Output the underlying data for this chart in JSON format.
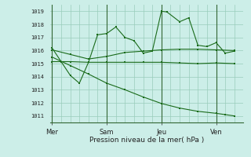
{
  "background_color": "#cceee8",
  "grid_color": "#99ccbb",
  "line_color": "#1a6b1a",
  "ylim": [
    1010.5,
    1019.5
  ],
  "yticks": [
    1011,
    1012,
    1013,
    1014,
    1015,
    1016,
    1017,
    1018,
    1019
  ],
  "xlabel": "Pression niveau de la mer( hPa )",
  "day_labels": [
    "Mer",
    "Sam",
    "Jeu",
    "Ven"
  ],
  "day_positions": [
    0,
    3,
    6,
    9
  ],
  "xlim": [
    -0.1,
    10.5
  ],
  "series1_x": [
    0,
    0.5,
    1,
    1.5,
    2,
    2.5,
    3,
    3.5,
    4,
    4.5,
    5,
    5.5,
    6,
    6.3,
    7,
    7.5,
    8,
    8.5,
    9,
    9.5,
    10
  ],
  "series1_y": [
    1016.2,
    1015.15,
    1014.1,
    1013.5,
    1015.1,
    1017.2,
    1017.3,
    1017.8,
    1017.0,
    1016.75,
    1015.8,
    1015.95,
    1019.0,
    1018.95,
    1018.2,
    1018.5,
    1016.4,
    1016.3,
    1016.6,
    1015.8,
    1015.95
  ],
  "series2_x": [
    0,
    0.5,
    1,
    2,
    3,
    4,
    5,
    6,
    7,
    8,
    9,
    10
  ],
  "series2_y": [
    1015.15,
    1015.15,
    1015.15,
    1015.1,
    1015.1,
    1015.1,
    1015.1,
    1015.1,
    1015.05,
    1015.0,
    1015.05,
    1015.0
  ],
  "series3_x": [
    0,
    1,
    2,
    3,
    4,
    5,
    6,
    7,
    8,
    9,
    10
  ],
  "series3_y": [
    1016.05,
    1015.7,
    1015.35,
    1015.55,
    1015.85,
    1015.95,
    1016.05,
    1016.1,
    1016.1,
    1016.05,
    1016.0
  ],
  "series4_x": [
    0,
    1,
    2,
    3,
    4,
    5,
    6,
    7,
    8,
    9,
    9.5,
    10
  ],
  "series4_y": [
    1015.5,
    1014.85,
    1014.2,
    1013.5,
    1013.0,
    1012.45,
    1011.95,
    1011.6,
    1011.35,
    1011.2,
    1011.1,
    1011.0
  ],
  "vline_color": "#336633",
  "spine_color": "#336633"
}
